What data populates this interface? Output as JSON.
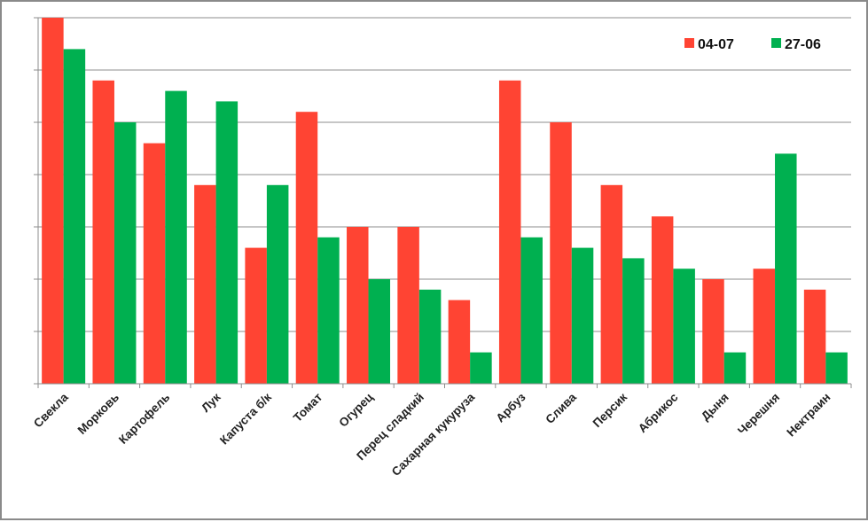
{
  "chart_data": {
    "type": "bar",
    "title": "",
    "xlabel": "",
    "ylabel": "",
    "ylim": [
      0,
      35
    ],
    "grid": true,
    "legend_position": "top-right",
    "categories": [
      "Свекла",
      "Морковь",
      "Картофель",
      "Лук",
      "Капуста б/к",
      "Томат",
      "Огурец",
      "Перец сладкий",
      "Сахарная кукуруза",
      "Арбуз",
      "Слива",
      "Персик",
      "Абрикос",
      "Дыня",
      "Черешня",
      "Нектраин"
    ],
    "series": [
      {
        "name": "04-07",
        "color": "#ff4433",
        "values": [
          35,
          29,
          23,
          19,
          13,
          26,
          15,
          15,
          8,
          29,
          25,
          19,
          16,
          10,
          11,
          9
        ]
      },
      {
        "name": "27-06",
        "color": "#00b050",
        "values": [
          32,
          25,
          28,
          27,
          19,
          14,
          10,
          9,
          3,
          14,
          13,
          12,
          11,
          3,
          22,
          3
        ]
      }
    ]
  }
}
